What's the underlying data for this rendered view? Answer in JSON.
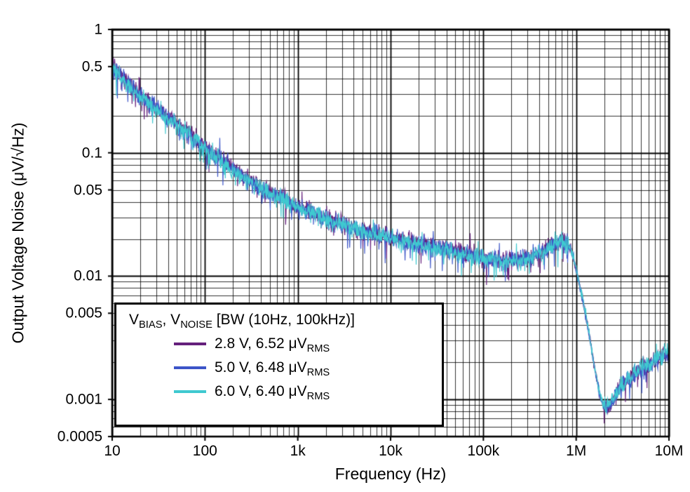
{
  "chart_data": {
    "type": "line",
    "title": "",
    "xlabel": "Frequency (Hz)",
    "ylabel": "Output Voltage Noise (μV/√Hz)",
    "x_scale": "log",
    "y_scale": "log",
    "xlim": [
      10,
      10000000
    ],
    "ylim": [
      0.0005,
      1
    ],
    "grid": "log-major-minor",
    "x_ticks": [
      {
        "value": 10,
        "label": "10"
      },
      {
        "value": 100,
        "label": "100"
      },
      {
        "value": 1000,
        "label": "1k"
      },
      {
        "value": 10000,
        "label": "10k"
      },
      {
        "value": 100000,
        "label": "100k"
      },
      {
        "value": 1000000,
        "label": "1M"
      },
      {
        "value": 10000000,
        "label": "10M"
      }
    ],
    "y_ticks": [
      {
        "value": 1,
        "label": "1"
      },
      {
        "value": 0.5,
        "label": "0.5"
      },
      {
        "value": 0.1,
        "label": "0.1"
      },
      {
        "value": 0.05,
        "label": "0.05"
      },
      {
        "value": 0.01,
        "label": "0.01"
      },
      {
        "value": 0.005,
        "label": "0.005"
      },
      {
        "value": 0.001,
        "label": "0.001"
      },
      {
        "value": 0.0005,
        "label": "0.0005"
      }
    ],
    "legend": {
      "position": "bottom-left",
      "title_segments": [
        {
          "text": "V"
        },
        {
          "text": "BIAS",
          "sub": true
        },
        {
          "text": ", V"
        },
        {
          "text": "NOISE",
          "sub": true
        },
        {
          "text": " [BW (10Hz, 100kHz)]"
        }
      ],
      "entries": [
        {
          "label": "2.8 V, 6.52 μV",
          "label_sub": "RMS",
          "color": "#65207c"
        },
        {
          "label": "5.0 V, 6.48 μV",
          "label_sub": "RMS",
          "color": "#3c55c8"
        },
        {
          "label": "6.0 V, 6.40 μV",
          "label_sub": "RMS",
          "color": "#3fc9d0"
        }
      ]
    },
    "series": [
      {
        "name": "2.8 V, 6.52 uVRMS",
        "color": "#65207c",
        "seed": 7,
        "points": [
          [
            10,
            0.52
          ],
          [
            16,
            0.35
          ],
          [
            25,
            0.262
          ],
          [
            40,
            0.198
          ],
          [
            63,
            0.152
          ],
          [
            100,
            0.112
          ],
          [
            158,
            0.086
          ],
          [
            251,
            0.066
          ],
          [
            398,
            0.053
          ],
          [
            631,
            0.0445
          ],
          [
            1000,
            0.0375
          ],
          [
            1585,
            0.032
          ],
          [
            2512,
            0.0278
          ],
          [
            3981,
            0.0248
          ],
          [
            6310,
            0.0226
          ],
          [
            10000,
            0.0208
          ],
          [
            15849,
            0.0191
          ],
          [
            25119,
            0.0177
          ],
          [
            39811,
            0.0165
          ],
          [
            63096,
            0.0153
          ],
          [
            100000,
            0.0142
          ],
          [
            158489,
            0.0134
          ],
          [
            251189,
            0.0135
          ],
          [
            398107,
            0.0153
          ],
          [
            501187,
            0.017
          ],
          [
            630957,
            0.0188
          ],
          [
            707946,
            0.0196
          ],
          [
            794328,
            0.0188
          ],
          [
            891251,
            0.0158
          ],
          [
            1000000,
            0.0112
          ],
          [
            1122018,
            0.0076
          ],
          [
            1258925,
            0.005
          ],
          [
            1412538,
            0.0031
          ],
          [
            1584893,
            0.0018
          ],
          [
            1778279,
            0.00115
          ],
          [
            1995262,
            0.00086
          ],
          [
            2238721,
            0.0009
          ],
          [
            2511886,
            0.00104
          ],
          [
            3162278,
            0.00132
          ],
          [
            3981072,
            0.00156
          ],
          [
            5011872,
            0.00176
          ],
          [
            6309573,
            0.00196
          ],
          [
            7943282,
            0.00218
          ],
          [
            10000000,
            0.0024
          ]
        ]
      },
      {
        "name": "5.0 V, 6.48 uVRMS",
        "color": "#3c55c8",
        "seed": 1234,
        "points": [
          [
            10,
            0.5
          ],
          [
            16,
            0.34
          ],
          [
            25,
            0.255
          ],
          [
            40,
            0.193
          ],
          [
            63,
            0.149
          ],
          [
            100,
            0.11
          ],
          [
            158,
            0.084
          ],
          [
            251,
            0.065
          ],
          [
            398,
            0.052
          ],
          [
            631,
            0.0438
          ],
          [
            1000,
            0.037
          ],
          [
            1585,
            0.0315
          ],
          [
            2512,
            0.0274
          ],
          [
            3981,
            0.0245
          ],
          [
            6310,
            0.0223
          ],
          [
            10000,
            0.0205
          ],
          [
            15849,
            0.0189
          ],
          [
            25119,
            0.0175
          ],
          [
            39811,
            0.0163
          ],
          [
            63096,
            0.0151
          ],
          [
            100000,
            0.014
          ],
          [
            158489,
            0.0133
          ],
          [
            251189,
            0.0134
          ],
          [
            398107,
            0.0151
          ],
          [
            501187,
            0.0168
          ],
          [
            630957,
            0.0186
          ],
          [
            707946,
            0.0194
          ],
          [
            794328,
            0.0186
          ],
          [
            891251,
            0.0156
          ],
          [
            1000000,
            0.011
          ],
          [
            1122018,
            0.0074
          ],
          [
            1258925,
            0.0048
          ],
          [
            1412538,
            0.003
          ],
          [
            1584893,
            0.00175
          ],
          [
            1778279,
            0.00112
          ],
          [
            1995262,
            0.00084
          ],
          [
            2238721,
            0.00088
          ],
          [
            2511886,
            0.00102
          ],
          [
            3162278,
            0.00129
          ],
          [
            3981072,
            0.00152
          ],
          [
            5011872,
            0.00172
          ],
          [
            6309573,
            0.0019
          ],
          [
            7943282,
            0.0021
          ],
          [
            10000000,
            0.00232
          ]
        ]
      },
      {
        "name": "6.0 V, 6.40 uVRMS",
        "color": "#3fc9d0",
        "seed": 98765,
        "points": [
          [
            10,
            0.48
          ],
          [
            16,
            0.33
          ],
          [
            25,
            0.248
          ],
          [
            40,
            0.188
          ],
          [
            63,
            0.146
          ],
          [
            100,
            0.108
          ],
          [
            158,
            0.083
          ],
          [
            251,
            0.064
          ],
          [
            398,
            0.0515
          ],
          [
            631,
            0.0432
          ],
          [
            1000,
            0.0366
          ],
          [
            1585,
            0.0312
          ],
          [
            2512,
            0.0271
          ],
          [
            3981,
            0.0243
          ],
          [
            6310,
            0.0221
          ],
          [
            10000,
            0.0203
          ],
          [
            15849,
            0.0187
          ],
          [
            25119,
            0.0174
          ],
          [
            39811,
            0.0162
          ],
          [
            63096,
            0.015
          ],
          [
            100000,
            0.0139
          ],
          [
            158489,
            0.0132
          ],
          [
            251189,
            0.0133
          ],
          [
            398107,
            0.015
          ],
          [
            501187,
            0.0169
          ],
          [
            630957,
            0.019
          ],
          [
            707946,
            0.02
          ],
          [
            794328,
            0.0192
          ],
          [
            891251,
            0.016
          ],
          [
            1000000,
            0.0113
          ],
          [
            1122018,
            0.0077
          ],
          [
            1258925,
            0.0051
          ],
          [
            1412538,
            0.0031
          ],
          [
            1584893,
            0.0018
          ],
          [
            1778279,
            0.00116
          ],
          [
            1995262,
            0.00088
          ],
          [
            2238721,
            0.00092
          ],
          [
            2511886,
            0.00106
          ],
          [
            3162278,
            0.00134
          ],
          [
            3981072,
            0.00158
          ],
          [
            5011872,
            0.0018
          ],
          [
            6309573,
            0.002
          ],
          [
            7943282,
            0.00222
          ],
          [
            10000000,
            0.00248
          ]
        ]
      }
    ]
  }
}
